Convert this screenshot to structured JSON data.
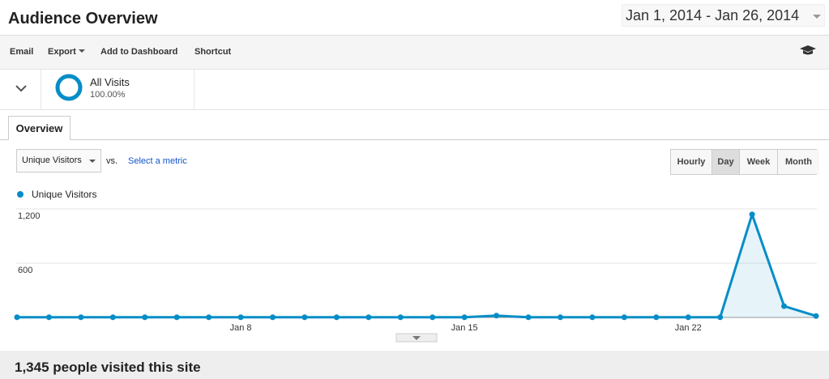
{
  "header": {
    "title": "Audience Overview",
    "date_range": "Jan 1, 2014 - Jan 26, 2014"
  },
  "toolbar": [
    "Email",
    "Export",
    "Add to Dashboard",
    "Shortcut"
  ],
  "segment": {
    "name": "All Visits",
    "percent": "100.00%"
  },
  "tabs": [
    "Overview"
  ],
  "metric_select": "Unique Visitors",
  "vs": "vs.",
  "select_metric": "Select a metric",
  "granularity": [
    "Hourly",
    "Day",
    "Week",
    "Month"
  ],
  "active_granularity": 1,
  "chart_data": {
    "type": "line",
    "categories": [
      null,
      null,
      null,
      null,
      null,
      null,
      null,
      "Jan 8",
      null,
      null,
      null,
      null,
      null,
      null,
      "Jan 15",
      null,
      null,
      null,
      null,
      null,
      null,
      "Jan 22",
      null,
      null,
      null,
      null
    ],
    "series": [
      {
        "name": "Unique Visitors",
        "color": "#058dc7",
        "values": [
          2,
          2,
          2,
          2,
          2,
          2,
          2,
          2,
          2,
          2,
          2,
          2,
          2,
          2,
          2,
          20,
          2,
          2,
          2,
          2,
          2,
          2,
          2,
          1140,
          125,
          16
        ]
      }
    ],
    "ylim": [
      0,
      1200
    ],
    "yticks": [
      600,
      {
        "value": 1200,
        "label": "1,200"
      }
    ],
    "grid": true
  },
  "summary": "1,345 people visited this site"
}
